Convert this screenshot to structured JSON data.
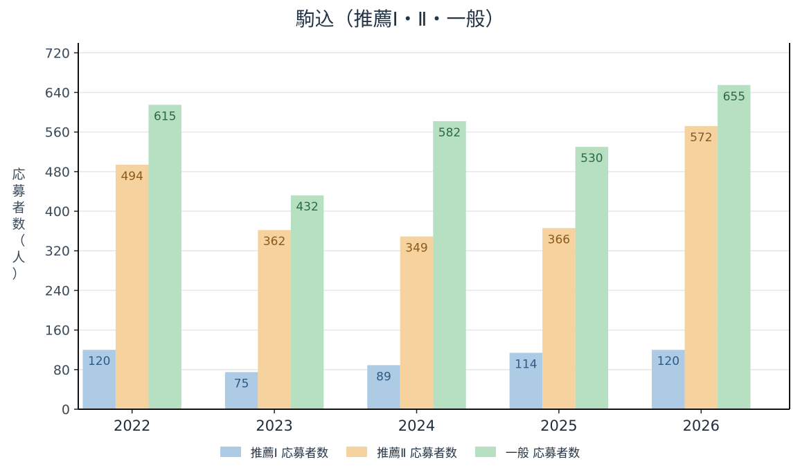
{
  "chart_data": {
    "type": "bar",
    "title": "駒込（推薦Ⅰ・Ⅱ・一般）",
    "xlabel": "",
    "ylabel": "応募者数（人）",
    "categories": [
      "2022",
      "2023",
      "2024",
      "2025",
      "2026"
    ],
    "ylim": [
      0,
      740
    ],
    "yticks": [
      0,
      80,
      160,
      240,
      320,
      400,
      480,
      560,
      640,
      720
    ],
    "grid": true,
    "legend_position": "bottom",
    "series": [
      {
        "name": "推薦Ⅰ 応募者数",
        "color": "#aecbe6",
        "label_color": "#2e5a86",
        "values": [
          120,
          75,
          89,
          114,
          120
        ]
      },
      {
        "name": "推薦Ⅱ 応募者数",
        "color": "#f6d29f",
        "label_color": "#8a5a1c",
        "values": [
          494,
          362,
          349,
          366,
          572
        ]
      },
      {
        "name": "一般 応募者数",
        "color": "#b7e0c2",
        "label_color": "#2d6a43",
        "values": [
          615,
          432,
          582,
          530,
          655
        ]
      }
    ]
  }
}
